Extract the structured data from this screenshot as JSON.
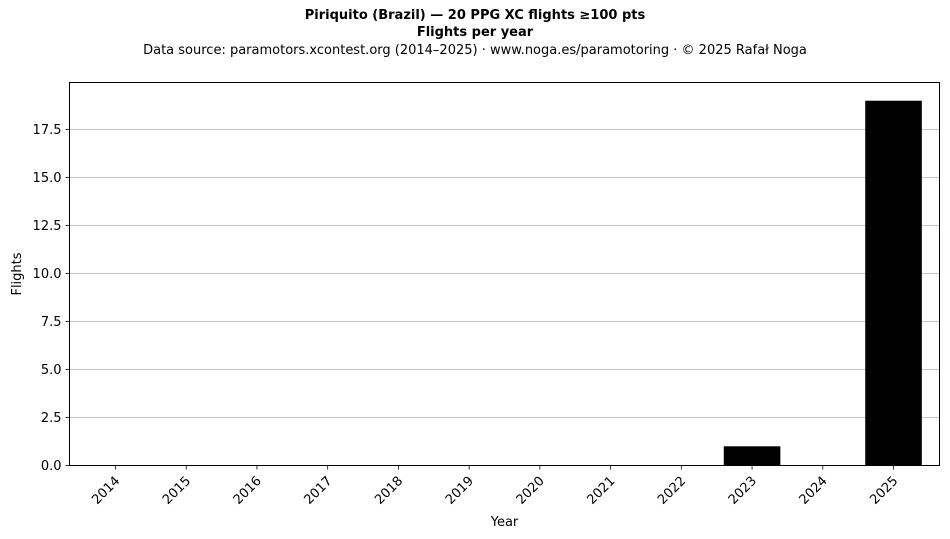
{
  "chart_data": {
    "type": "bar",
    "title": "Piriquito (Brazil)  —  20 PPG XC flights ≥100 pts",
    "subtitle": "Flights per year",
    "source_note": "Data source: paramotors.xcontest.org (2014–2025)  ·  www.noga.es/paramotoring  ·  © 2025 Rafał Noga",
    "xlabel": "Year",
    "ylabel": "Flights",
    "categories": [
      "2014",
      "2015",
      "2016",
      "2017",
      "2018",
      "2019",
      "2020",
      "2021",
      "2022",
      "2023",
      "2024",
      "2025"
    ],
    "values": [
      0,
      0,
      0,
      0,
      0,
      0,
      0,
      0,
      0,
      1,
      0,
      19
    ],
    "ylim": [
      0,
      19.95
    ],
    "yticks": [
      "0.0",
      "2.5",
      "5.0",
      "7.5",
      "10.0",
      "12.5",
      "15.0",
      "17.5"
    ],
    "grid": "horizontal",
    "bar_color": "#000000",
    "grid_color": "#b0b0b0"
  }
}
